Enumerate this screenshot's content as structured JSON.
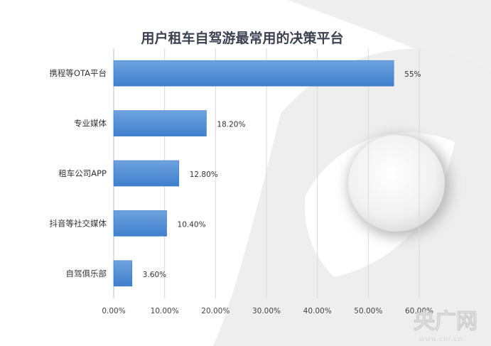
{
  "chart_data": {
    "type": "bar",
    "orientation": "horizontal",
    "title": "用户租车自驾游最常用的决策平台",
    "categories": [
      "携程等OTA平台",
      "专业媒体",
      "租车公司APP",
      "抖音等社交媒体",
      "自驾俱乐部"
    ],
    "values": [
      55,
      18.2,
      12.8,
      10.4,
      3.6
    ],
    "value_labels": [
      "55%",
      "18.20%",
      "12.80%",
      "10.40%",
      "3.60%"
    ],
    "xlim": [
      0,
      60
    ],
    "x_ticks": [
      "0.00%",
      "10.00%",
      "20.00%",
      "30.00%",
      "40.00%",
      "50.00%",
      "60.00%"
    ],
    "xlabel": "",
    "ylabel": "",
    "grid": "vertical",
    "bar_color": "#4a88d4",
    "legend": "none"
  },
  "watermark": {
    "logo_text": "央广网",
    "sub_text": "www.cnr.cn"
  }
}
